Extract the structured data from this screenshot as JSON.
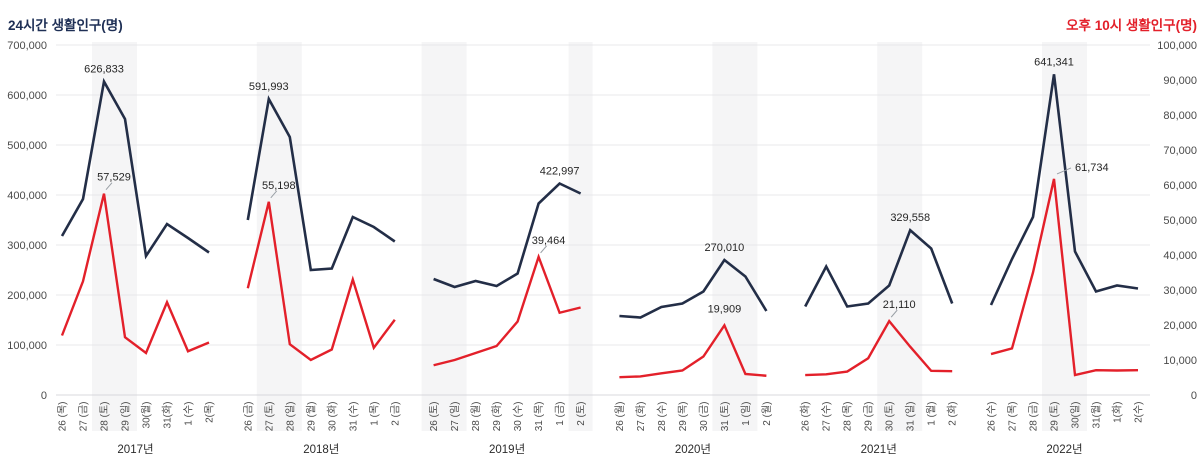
{
  "chart_data": {
    "type": "line",
    "description": "Small-multiple comparison of de facto population by year, Dec 26/Jan 26 window (days 26–2), dual axis",
    "left_axis": {
      "title": "24시간 생활인구(명)",
      "min": 0,
      "max": 700000,
      "tick_step": 100000,
      "tick_labels": [
        "700,000",
        "600,000",
        "500,000",
        "400,000",
        "300,000",
        "200,000",
        "100,000",
        "0"
      ]
    },
    "right_axis": {
      "title": "오후 10시 생활인구(명)",
      "min": 0,
      "max": 100000,
      "tick_step": 10000,
      "tick_labels": [
        "100,000",
        "90,000",
        "80,000",
        "70,000",
        "60,000",
        "50,000",
        "40,000",
        "30,000",
        "20,000",
        "10,000",
        "0"
      ]
    },
    "series_meta": [
      {
        "key": "series_24h",
        "name": "24시간 생활인구",
        "axis": "left",
        "color": "#232e47"
      },
      {
        "key": "series_22h",
        "name": "오후 10시 생활인구",
        "axis": "right",
        "color": "#e3202a"
      }
    ],
    "colors": {
      "navy": "#232e47",
      "red": "#e3202a",
      "grid": "#e8e8eb",
      "baseline": "#d8d8dc",
      "band": "#f5f5f6",
      "axis_text": "#4a4a4a",
      "year_text": "#2b2b2b",
      "annotation_text": "#262626",
      "leader": "#9aa0a6"
    },
    "grid": true,
    "legend_position": "none",
    "panels": [
      {
        "year": "2017년",
        "x_labels": [
          "26 (목)",
          "27 (금)",
          "28 (토)",
          "29 (일)",
          "30(월)",
          "31(화)",
          "1 (수)",
          "2(목)"
        ],
        "weekend_bands": [
          [
            2,
            3
          ]
        ],
        "series_24h": [
          318000,
          392000,
          626833,
          552000,
          278000,
          342000,
          314000,
          285000
        ],
        "series_22h": [
          17000,
          32500,
          57529,
          16500,
          12000,
          26500,
          12500,
          15000
        ],
        "annotations": [
          {
            "series": "24h",
            "index": 2,
            "text": "626,833",
            "placement": "above",
            "leader": false
          },
          {
            "series": "22h",
            "index": 2,
            "text": "57,529",
            "placement": "above",
            "leader": true
          }
        ]
      },
      {
        "year": "2018년",
        "x_labels": [
          "26 (금)",
          "27 (토)",
          "28 (일)",
          "29 (월)",
          "30 (화)",
          "31 (수)",
          "1 (목)",
          "2 (금)"
        ],
        "weekend_bands": [
          [
            1,
            2
          ]
        ],
        "series_24h": [
          350000,
          591993,
          516000,
          250000,
          253000,
          356000,
          336000,
          307000
        ],
        "series_22h": [
          30500,
          55198,
          14500,
          10000,
          13000,
          33000,
          13500,
          21500
        ],
        "annotations": [
          {
            "series": "24h",
            "index": 1,
            "text": "591,993",
            "placement": "above",
            "leader": false
          },
          {
            "series": "22h",
            "index": 1,
            "text": "55,198",
            "placement": "above",
            "leader": true
          }
        ]
      },
      {
        "year": "2019년",
        "x_labels": [
          "26 (토)",
          "27 (일)",
          "28 (월)",
          "29 (화)",
          "30 (수)",
          "31 (목)",
          "1 (금)",
          "2 (토)"
        ],
        "weekend_bands": [
          [
            0,
            1
          ],
          [
            7,
            7
          ]
        ],
        "series_24h": [
          232000,
          216000,
          228000,
          218000,
          243000,
          383000,
          422997,
          403000
        ],
        "series_22h": [
          8500,
          10000,
          12000,
          14000,
          21000,
          39464,
          23500,
          25000
        ],
        "annotations": [
          {
            "series": "24h",
            "index": 6,
            "text": "422,997",
            "placement": "above",
            "leader": false
          },
          {
            "series": "22h",
            "index": 5,
            "text": "39,464",
            "placement": "above",
            "leader": true
          }
        ]
      },
      {
        "year": "2020년",
        "x_labels": [
          "26 (월)",
          "27 (화)",
          "28 (수)",
          "29 (목)",
          "30 (금)",
          "31 (토)",
          "1 (일)",
          "2 (월)"
        ],
        "weekend_bands": [
          [
            5,
            6
          ]
        ],
        "series_24h": [
          158000,
          155000,
          176000,
          183000,
          207000,
          270010,
          237000,
          168000
        ],
        "series_22h": [
          5100,
          5300,
          6200,
          7000,
          11000,
          19909,
          6000,
          5500
        ],
        "annotations": [
          {
            "series": "24h",
            "index": 5,
            "text": "270,010",
            "placement": "above",
            "leader": false
          },
          {
            "series": "22h",
            "index": 5,
            "text": "19,909",
            "placement": "above",
            "leader": false
          }
        ]
      },
      {
        "year": "2021년",
        "x_labels": [
          "26 (화)",
          "27 (수)",
          "28 (목)",
          "29 (금)",
          "30 (토)",
          "31 (일)",
          "1 (월)",
          "2 (화)"
        ],
        "weekend_bands": [
          [
            4,
            5
          ]
        ],
        "series_24h": [
          177000,
          257000,
          177000,
          183000,
          219000,
          329558,
          293000,
          183000
        ],
        "series_22h": [
          5700,
          5900,
          6700,
          10500,
          21110,
          13800,
          6900,
          6800
        ],
        "annotations": [
          {
            "series": "24h",
            "index": 5,
            "text": "329,558",
            "placement": "above",
            "leader": false
          },
          {
            "series": "22h",
            "index": 4,
            "text": "21,110",
            "placement": "above",
            "leader": true
          }
        ]
      },
      {
        "year": "2022년",
        "x_labels": [
          "26 (수)",
          "27 (목)",
          "28 (금)",
          "29 (토)",
          "30(일)",
          "31(월)",
          "1(화)",
          "2(수)"
        ],
        "weekend_bands": [
          [
            3,
            4
          ]
        ],
        "series_24h": [
          180000,
          272000,
          356000,
          641341,
          287000,
          207000,
          219000,
          213000
        ],
        "series_22h": [
          11700,
          13300,
          35000,
          61734,
          5700,
          7100,
          7000,
          7100
        ],
        "annotations": [
          {
            "series": "24h",
            "index": 3,
            "text": "641,341",
            "placement": "above",
            "leader": false
          },
          {
            "series": "22h",
            "index": 3,
            "text": "61,734",
            "placement": "right",
            "leader": true
          }
        ]
      }
    ]
  }
}
